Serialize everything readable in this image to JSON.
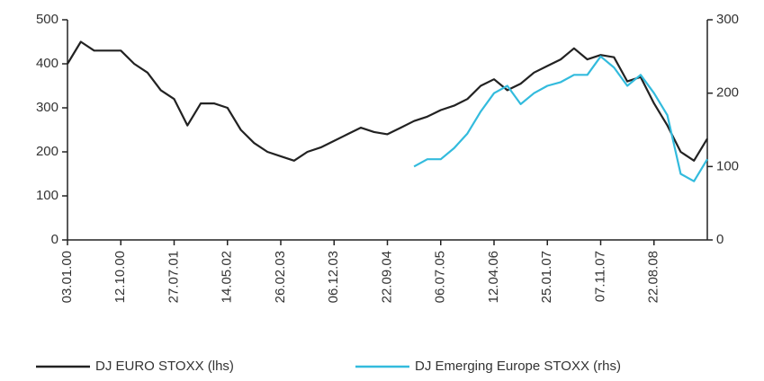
{
  "chart_data": {
    "type": "line",
    "categories": [
      "03.01.00",
      null,
      null,
      null,
      "12.10.00",
      null,
      null,
      null,
      "27.07.01",
      null,
      null,
      null,
      "14.05.02",
      null,
      null,
      null,
      "26.02.03",
      null,
      null,
      null,
      "06.12.03",
      null,
      null,
      null,
      "22.09.04",
      null,
      null,
      null,
      "06.07.05",
      null,
      null,
      null,
      "12.04.06",
      null,
      null,
      null,
      "25.01.07",
      null,
      null,
      null,
      "07.11.07",
      null,
      null,
      null,
      "22.08.08",
      null,
      null,
      null,
      null
    ],
    "series": [
      {
        "name": "DJ EURO STOXX (lhs)",
        "color": "#222222",
        "values": [
          400,
          450,
          430,
          430,
          430,
          400,
          380,
          340,
          320,
          260,
          310,
          310,
          300,
          250,
          220,
          200,
          190,
          180,
          200,
          210,
          225,
          240,
          255,
          245,
          240,
          255,
          270,
          280,
          295,
          305,
          320,
          350,
          365,
          340,
          355,
          380,
          395,
          410,
          435,
          410,
          420,
          415,
          360,
          370,
          310,
          260,
          200,
          180,
          230
        ]
      },
      {
        "name": "DJ Emerging Europe STOXX (rhs)",
        "color": "#33bbdd",
        "axis": "y2",
        "values": [
          null,
          null,
          null,
          null,
          null,
          null,
          null,
          null,
          null,
          null,
          null,
          null,
          null,
          null,
          null,
          null,
          null,
          null,
          null,
          null,
          null,
          null,
          null,
          null,
          null,
          null,
          100,
          110,
          110,
          125,
          145,
          175,
          200,
          210,
          185,
          200,
          210,
          215,
          225,
          225,
          250,
          235,
          210,
          225,
          200,
          170,
          90,
          80,
          110
        ]
      }
    ],
    "ylim": [
      0,
      500
    ],
    "yticks": [
      0,
      100,
      200,
      300,
      400,
      500
    ],
    "y2lim": [
      0,
      300
    ],
    "y2ticks": [
      0,
      100,
      200,
      300
    ]
  }
}
